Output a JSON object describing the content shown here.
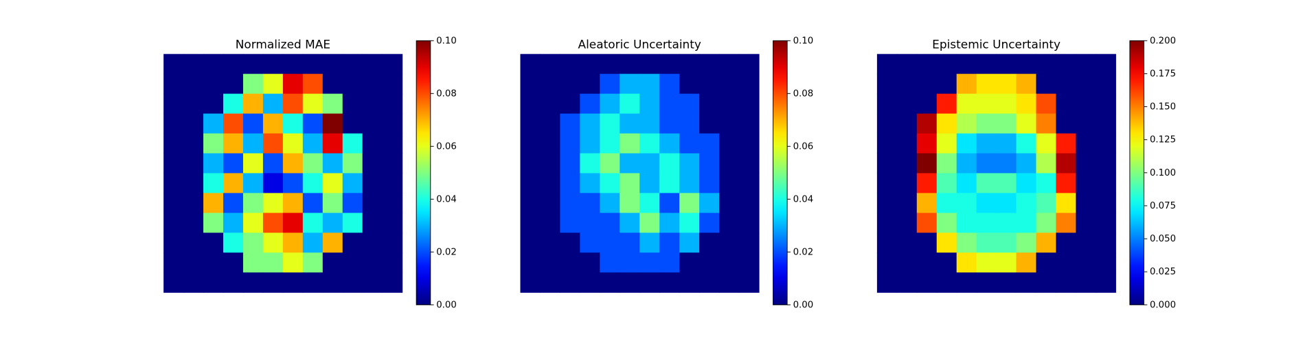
{
  "chart_data": [
    {
      "type": "heatmap",
      "title": "Normalized MAE",
      "colormap": "jet",
      "zlim": [
        0,
        0.1
      ],
      "zticks": [
        {
          "value": 0,
          "label": "0.00"
        },
        {
          "value": 0.02,
          "label": "0.02"
        },
        {
          "value": 0.04,
          "label": "0.04"
        },
        {
          "value": 0.06,
          "label": "0.06"
        },
        {
          "value": 0.08,
          "label": "0.08"
        },
        {
          "value": 0.1,
          "label": "0.10"
        }
      ],
      "z": [
        [
          0,
          0,
          0,
          0,
          0,
          0,
          0,
          0,
          0,
          0,
          0,
          0
        ],
        [
          0,
          0,
          0,
          0,
          0.05,
          0.06,
          0.09,
          0.08,
          0,
          0,
          0,
          0
        ],
        [
          0,
          0,
          0,
          0.04,
          0.07,
          0.03,
          0.08,
          0.06,
          0.05,
          0,
          0,
          0
        ],
        [
          0,
          0,
          0.03,
          0.08,
          0.02,
          0.07,
          0.04,
          0.02,
          0.1,
          0,
          0,
          0
        ],
        [
          0,
          0,
          0.05,
          0.07,
          0.03,
          0.08,
          0.06,
          0.03,
          0.09,
          0.04,
          0,
          0
        ],
        [
          0,
          0,
          0.03,
          0.02,
          0.06,
          0.02,
          0.07,
          0.05,
          0.03,
          0.05,
          0,
          0
        ],
        [
          0,
          0,
          0.04,
          0.07,
          0.03,
          0.01,
          0.02,
          0.04,
          0.06,
          0.03,
          0,
          0
        ],
        [
          0,
          0,
          0.07,
          0.02,
          0.05,
          0.06,
          0.07,
          0.02,
          0.05,
          0.02,
          0,
          0
        ],
        [
          0,
          0,
          0.05,
          0.03,
          0.06,
          0.08,
          0.09,
          0.04,
          0.03,
          0.04,
          0,
          0
        ],
        [
          0,
          0,
          0,
          0.04,
          0.05,
          0.06,
          0.07,
          0.03,
          0.07,
          0,
          0,
          0
        ],
        [
          0,
          0,
          0,
          0,
          0.05,
          0.05,
          0.06,
          0.05,
          0,
          0,
          0,
          0
        ],
        [
          0,
          0,
          0,
          0,
          0,
          0,
          0,
          0,
          0,
          0,
          0,
          0
        ]
      ]
    },
    {
      "type": "heatmap",
      "title": "Aleatoric Uncertainty",
      "colormap": "jet",
      "zlim": [
        0,
        0.1
      ],
      "zticks": [
        {
          "value": 0,
          "label": "0.00"
        },
        {
          "value": 0.02,
          "label": "0.02"
        },
        {
          "value": 0.04,
          "label": "0.04"
        },
        {
          "value": 0.06,
          "label": "0.06"
        },
        {
          "value": 0.08,
          "label": "0.08"
        },
        {
          "value": 0.1,
          "label": "0.10"
        }
      ],
      "z": [
        [
          0,
          0,
          0,
          0,
          0,
          0,
          0,
          0,
          0,
          0,
          0,
          0
        ],
        [
          0,
          0,
          0,
          0,
          0.02,
          0.03,
          0.03,
          0.02,
          0,
          0,
          0,
          0
        ],
        [
          0,
          0,
          0,
          0.02,
          0.03,
          0.04,
          0.03,
          0.02,
          0.02,
          0,
          0,
          0
        ],
        [
          0,
          0,
          0.02,
          0.03,
          0.04,
          0.03,
          0.03,
          0.02,
          0.02,
          0,
          0,
          0
        ],
        [
          0,
          0,
          0.02,
          0.03,
          0.04,
          0.05,
          0.04,
          0.03,
          0.02,
          0.02,
          0,
          0
        ],
        [
          0,
          0,
          0.02,
          0.04,
          0.05,
          0.03,
          0.03,
          0.04,
          0.03,
          0.02,
          0,
          0
        ],
        [
          0,
          0,
          0.02,
          0.03,
          0.04,
          0.05,
          0.03,
          0.04,
          0.03,
          0.02,
          0,
          0
        ],
        [
          0,
          0,
          0.02,
          0.02,
          0.03,
          0.05,
          0.04,
          0.02,
          0.05,
          0.03,
          0,
          0
        ],
        [
          0,
          0,
          0.02,
          0.02,
          0.02,
          0.03,
          0.05,
          0.03,
          0.04,
          0.02,
          0,
          0
        ],
        [
          0,
          0,
          0,
          0.02,
          0.02,
          0.02,
          0.03,
          0.02,
          0.03,
          0,
          0,
          0
        ],
        [
          0,
          0,
          0,
          0,
          0.02,
          0.02,
          0.02,
          0.02,
          0,
          0,
          0,
          0
        ],
        [
          0,
          0,
          0,
          0,
          0,
          0,
          0,
          0,
          0,
          0,
          0,
          0
        ]
      ]
    },
    {
      "type": "heatmap",
      "title": "Epistemic Uncertainty",
      "colormap": "jet",
      "zlim": [
        0,
        0.2
      ],
      "zticks": [
        {
          "value": 0,
          "label": "0.000"
        },
        {
          "value": 0.025,
          "label": "0.025"
        },
        {
          "value": 0.05,
          "label": "0.050"
        },
        {
          "value": 0.075,
          "label": "0.075"
        },
        {
          "value": 0.1,
          "label": "0.100"
        },
        {
          "value": 0.125,
          "label": "0.125"
        },
        {
          "value": 0.15,
          "label": "0.150"
        },
        {
          "value": 0.175,
          "label": "0.175"
        },
        {
          "value": 0.2,
          "label": "0.200"
        }
      ],
      "z": [
        [
          0,
          0,
          0,
          0,
          0,
          0,
          0,
          0,
          0,
          0,
          0,
          0
        ],
        [
          0,
          0,
          0,
          0,
          0.14,
          0.13,
          0.13,
          0.14,
          0,
          0,
          0,
          0
        ],
        [
          0,
          0,
          0,
          0.17,
          0.12,
          0.12,
          0.12,
          0.13,
          0.16,
          0,
          0,
          0
        ],
        [
          0,
          0,
          0.19,
          0.13,
          0.11,
          0.1,
          0.1,
          0.12,
          0.15,
          0,
          0,
          0
        ],
        [
          0,
          0,
          0.18,
          0.12,
          0.07,
          0.06,
          0.06,
          0.08,
          0.12,
          0.17,
          0,
          0
        ],
        [
          0,
          0,
          0.2,
          0.1,
          0.06,
          0.05,
          0.05,
          0.06,
          0.11,
          0.19,
          0,
          0
        ],
        [
          0,
          0,
          0.17,
          0.09,
          0.07,
          0.09,
          0.09,
          0.07,
          0.08,
          0.17,
          0,
          0
        ],
        [
          0,
          0,
          0.14,
          0.08,
          0.08,
          0.07,
          0.07,
          0.08,
          0.09,
          0.13,
          0,
          0
        ],
        [
          0,
          0,
          0.16,
          0.1,
          0.08,
          0.08,
          0.08,
          0.08,
          0.1,
          0.15,
          0,
          0
        ],
        [
          0,
          0,
          0,
          0.13,
          0.1,
          0.09,
          0.09,
          0.1,
          0.14,
          0,
          0,
          0
        ],
        [
          0,
          0,
          0,
          0,
          0.13,
          0.12,
          0.12,
          0.14,
          0,
          0,
          0,
          0
        ],
        [
          0,
          0,
          0,
          0,
          0,
          0,
          0,
          0,
          0,
          0,
          0,
          0
        ]
      ]
    }
  ]
}
